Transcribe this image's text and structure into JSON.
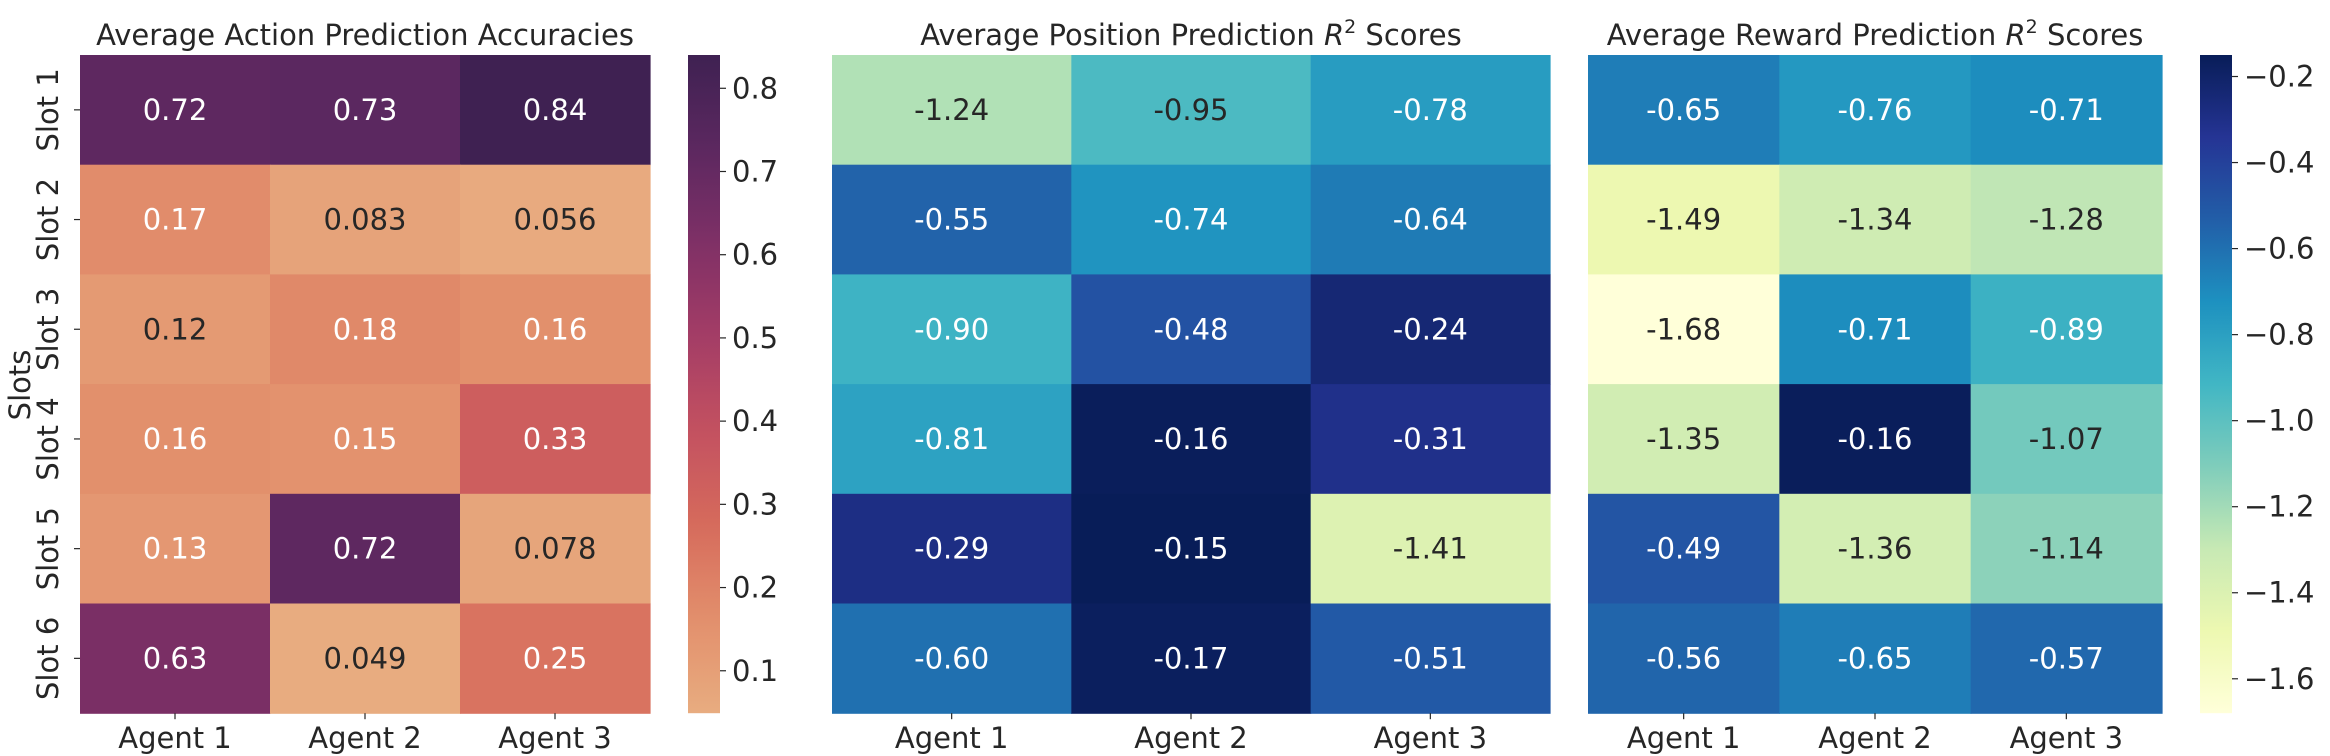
{
  "figure": {
    "shared_ylabel": "Slots"
  },
  "chart_data": [
    {
      "type": "heatmap",
      "title": "Average Action Prediction Accuracies",
      "colormap": "flare",
      "x_categories": [
        "Agent 1",
        "Agent 2",
        "Agent 3"
      ],
      "y_categories": [
        "Slot 1",
        "Slot 2",
        "Slot 3",
        "Slot 4",
        "Slot 5",
        "Slot 6"
      ],
      "values": [
        [
          0.72,
          0.73,
          0.84
        ],
        [
          0.17,
          0.083,
          0.056
        ],
        [
          0.12,
          0.18,
          0.16
        ],
        [
          0.16,
          0.15,
          0.33
        ],
        [
          0.13,
          0.72,
          0.078
        ],
        [
          0.63,
          0.049,
          0.25
        ]
      ],
      "labels": [
        [
          "0.72",
          "0.73",
          "0.84"
        ],
        [
          "0.17",
          "0.083",
          "0.056"
        ],
        [
          "0.12",
          "0.18",
          "0.16"
        ],
        [
          "0.16",
          "0.15",
          "0.33"
        ],
        [
          "0.13",
          "0.72",
          "0.078"
        ],
        [
          "0.63",
          "0.049",
          "0.25"
        ]
      ],
      "colorbar": {
        "range": [
          0.049,
          0.84
        ],
        "ticks": [
          0.1,
          0.2,
          0.3,
          0.4,
          0.5,
          0.6,
          0.7,
          0.8
        ],
        "tick_labels": [
          "0.1",
          "0.2",
          "0.3",
          "0.4",
          "0.5",
          "0.6",
          "0.7",
          "0.8"
        ]
      }
    },
    {
      "type": "heatmap",
      "title_parts": [
        "Average Position Prediction ",
        "R",
        "2",
        " Scores"
      ],
      "colormap": "YlGnBu",
      "x_categories": [
        "Agent 1",
        "Agent 2",
        "Agent 3"
      ],
      "y_categories": [
        "Slot 1",
        "Slot 2",
        "Slot 3",
        "Slot 4",
        "Slot 5",
        "Slot 6"
      ],
      "values": [
        [
          -1.24,
          -0.95,
          -0.78
        ],
        [
          -0.55,
          -0.74,
          -0.64
        ],
        [
          -0.9,
          -0.48,
          -0.24
        ],
        [
          -0.81,
          -0.16,
          -0.31
        ],
        [
          -0.29,
          -0.15,
          -1.41
        ],
        [
          -0.6,
          -0.17,
          -0.51
        ]
      ],
      "labels": [
        [
          "-1.24",
          "-0.95",
          "-0.78"
        ],
        [
          "-0.55",
          "-0.74",
          "-0.64"
        ],
        [
          "-0.90",
          "-0.48",
          "-0.24"
        ],
        [
          "-0.81",
          "-0.16",
          "-0.31"
        ],
        [
          "-0.29",
          "-0.15",
          "-1.41"
        ],
        [
          "-0.60",
          "-0.17",
          "-0.51"
        ]
      ],
      "colorbar": null
    },
    {
      "type": "heatmap",
      "title_parts": [
        "Average Reward Prediction ",
        "R",
        "2",
        " Scores"
      ],
      "colormap": "YlGnBu",
      "x_categories": [
        "Agent 1",
        "Agent 2",
        "Agent 3"
      ],
      "y_categories": [
        "Slot 1",
        "Slot 2",
        "Slot 3",
        "Slot 4",
        "Slot 5",
        "Slot 6"
      ],
      "values": [
        [
          -0.65,
          -0.76,
          -0.71
        ],
        [
          -1.49,
          -1.34,
          -1.28
        ],
        [
          -1.68,
          -0.71,
          -0.89
        ],
        [
          -1.35,
          -0.16,
          -1.07
        ],
        [
          -0.49,
          -1.36,
          -1.14
        ],
        [
          -0.56,
          -0.65,
          -0.57
        ]
      ],
      "labels": [
        [
          "-0.65",
          "-0.76",
          "-0.71"
        ],
        [
          "-1.49",
          "-1.34",
          "-1.28"
        ],
        [
          "-1.68",
          "-0.71",
          "-0.89"
        ],
        [
          "-1.35",
          "-0.16",
          "-1.07"
        ],
        [
          "-0.49",
          "-1.36",
          "-1.14"
        ],
        [
          "-0.56",
          "-0.65",
          "-0.57"
        ]
      ],
      "colorbar": {
        "range": [
          -1.68,
          -0.15
        ],
        "ticks": [
          -1.6,
          -1.4,
          -1.2,
          -1.0,
          -0.8,
          -0.6,
          -0.4,
          -0.2
        ],
        "tick_labels": [
          "−1.6",
          "−1.4",
          "−1.2",
          "−1.0",
          "−0.8",
          "−0.6",
          "−0.4",
          "−0.2"
        ]
      }
    }
  ]
}
